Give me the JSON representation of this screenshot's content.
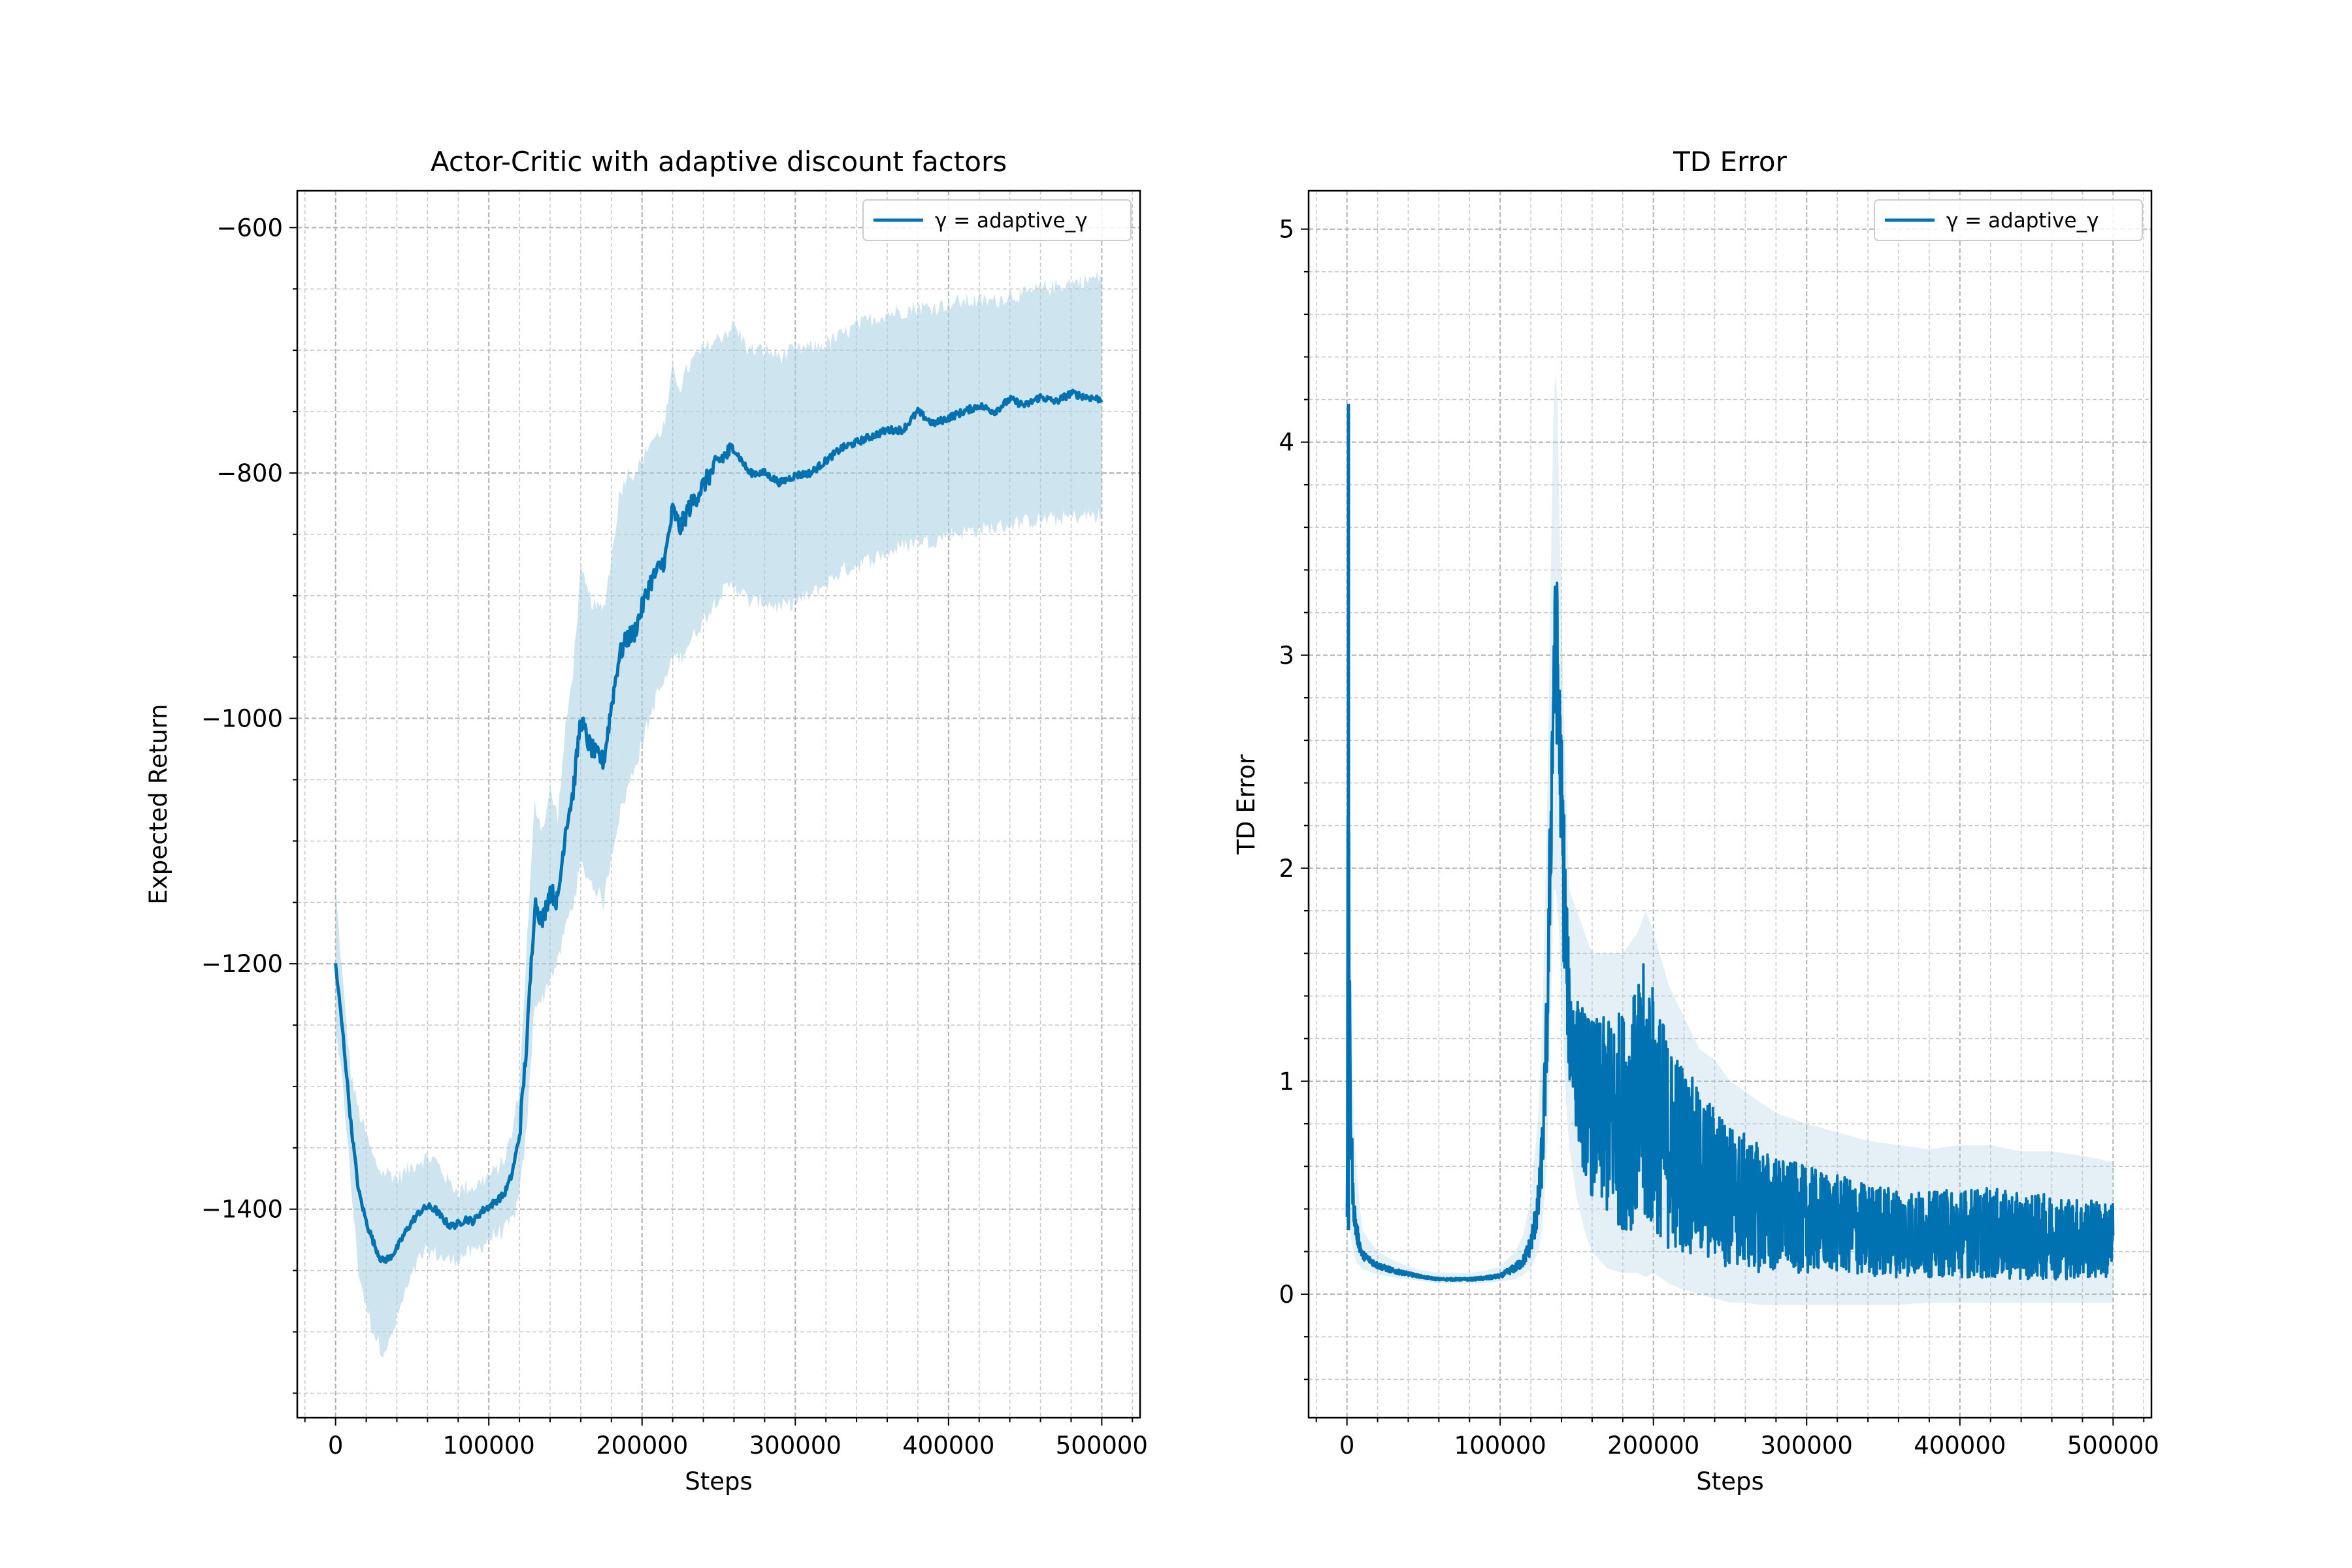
{
  "colors": {
    "line": "#0072b2",
    "band": "#a6cde2",
    "grid": "#b0b0b0",
    "background": "#ffffff"
  },
  "chart_data": [
    {
      "type": "line",
      "title": "Actor-Critic with adaptive discount factors",
      "xlabel": "Steps",
      "ylabel": "Expected Return",
      "xlim": [
        -25000,
        525000
      ],
      "ylim": [
        -1570,
        -570
      ],
      "xticks": [
        0,
        100000,
        200000,
        300000,
        400000,
        500000
      ],
      "xtick_labels": [
        "0",
        "100000",
        "200000",
        "300000",
        "400000",
        "500000"
      ],
      "yticks": [
        -1400,
        -1200,
        -1000,
        -800,
        -600
      ],
      "ytick_labels": [
        "−1400",
        "−1200",
        "−1000",
        "−800",
        "−600"
      ],
      "grid": true,
      "legend_position": "top-right",
      "series": [
        {
          "name": "γ = adaptive_γ",
          "x": [
            0,
            5000,
            10000,
            15000,
            20000,
            25000,
            30000,
            35000,
            40000,
            45000,
            50000,
            55000,
            60000,
            65000,
            70000,
            75000,
            80000,
            85000,
            90000,
            95000,
            100000,
            105000,
            110000,
            115000,
            120000,
            125000,
            130000,
            135000,
            140000,
            145000,
            150000,
            155000,
            160000,
            165000,
            170000,
            175000,
            180000,
            185000,
            190000,
            195000,
            200000,
            205000,
            210000,
            215000,
            220000,
            225000,
            230000,
            235000,
            240000,
            250000,
            260000,
            270000,
            280000,
            290000,
            300000,
            310000,
            320000,
            330000,
            340000,
            350000,
            360000,
            370000,
            380000,
            390000,
            400000,
            410000,
            420000,
            430000,
            440000,
            450000,
            460000,
            470000,
            480000,
            490000,
            500000
          ],
          "y": [
            -1200,
            -1260,
            -1330,
            -1385,
            -1410,
            -1428,
            -1442,
            -1440,
            -1432,
            -1420,
            -1410,
            -1402,
            -1398,
            -1400,
            -1408,
            -1414,
            -1412,
            -1408,
            -1410,
            -1402,
            -1398,
            -1393,
            -1388,
            -1372,
            -1340,
            -1260,
            -1150,
            -1165,
            -1140,
            -1150,
            -1090,
            -1060,
            -1000,
            -1020,
            -1030,
            -1035,
            -990,
            -950,
            -935,
            -930,
            -910,
            -890,
            -880,
            -870,
            -830,
            -845,
            -830,
            -820,
            -810,
            -790,
            -780,
            -800,
            -800,
            -808,
            -802,
            -800,
            -790,
            -780,
            -775,
            -770,
            -765,
            -765,
            -750,
            -760,
            -755,
            -750,
            -745,
            -750,
            -740,
            -745,
            -738,
            -742,
            -735,
            -738,
            -740
          ],
          "lower": [
            -1260,
            -1300,
            -1380,
            -1450,
            -1480,
            -1500,
            -1515,
            -1510,
            -1490,
            -1470,
            -1455,
            -1440,
            -1435,
            -1436,
            -1440,
            -1442,
            -1440,
            -1436,
            -1436,
            -1430,
            -1425,
            -1420,
            -1418,
            -1410,
            -1390,
            -1330,
            -1230,
            -1230,
            -1210,
            -1200,
            -1170,
            -1150,
            -1120,
            -1130,
            -1140,
            -1150,
            -1110,
            -1080,
            -1060,
            -1040,
            -1020,
            -1000,
            -980,
            -970,
            -950,
            -950,
            -940,
            -930,
            -920,
            -900,
            -890,
            -905,
            -905,
            -910,
            -905,
            -900,
            -890,
            -880,
            -875,
            -870,
            -865,
            -860,
            -855,
            -855,
            -850,
            -848,
            -846,
            -845,
            -842,
            -840,
            -838,
            -838,
            -836,
            -835,
            -835
          ],
          "upper": [
            -1140,
            -1220,
            -1290,
            -1320,
            -1340,
            -1360,
            -1370,
            -1370,
            -1375,
            -1370,
            -1365,
            -1360,
            -1358,
            -1360,
            -1370,
            -1380,
            -1385,
            -1382,
            -1382,
            -1378,
            -1373,
            -1368,
            -1360,
            -1340,
            -1300,
            -1180,
            -1070,
            -1090,
            -1060,
            -1080,
            -1010,
            -960,
            -880,
            -900,
            -910,
            -910,
            -870,
            -820,
            -800,
            -800,
            -790,
            -775,
            -770,
            -760,
            -715,
            -730,
            -715,
            -705,
            -700,
            -690,
            -680,
            -700,
            -700,
            -705,
            -700,
            -698,
            -695,
            -688,
            -680,
            -675,
            -670,
            -668,
            -665,
            -665,
            -662,
            -660,
            -660,
            -660,
            -655,
            -655,
            -650,
            -648,
            -645,
            -643,
            -640
          ]
        }
      ]
    },
    {
      "type": "line",
      "title": "TD Error",
      "xlabel": "Steps",
      "ylabel": "TD Error",
      "xlim": [
        -25000,
        525000
      ],
      "ylim": [
        -0.58,
        5.18
      ],
      "xticks": [
        0,
        100000,
        200000,
        300000,
        400000,
        500000
      ],
      "xtick_labels": [
        "0",
        "100000",
        "200000",
        "300000",
        "400000",
        "500000"
      ],
      "yticks": [
        0,
        1,
        2,
        3,
        4,
        5
      ],
      "ytick_labels": [
        "0",
        "1",
        "2",
        "3",
        "4",
        "5"
      ],
      "grid": true,
      "legend_position": "top-right",
      "series": [
        {
          "name": "γ = adaptive_γ",
          "x": [
            0,
            1000,
            2000,
            4000,
            6000,
            10000,
            20000,
            30000,
            40000,
            50000,
            60000,
            70000,
            80000,
            90000,
            100000,
            110000,
            115000,
            120000,
            125000,
            128000,
            131000,
            133000,
            135000,
            137000,
            139000,
            141000,
            143000,
            145000,
            150000,
            155000,
            160000,
            170000,
            180000,
            190000,
            195000,
            200000,
            210000,
            220000,
            230000,
            240000,
            250000,
            260000,
            270000,
            280000,
            300000,
            320000,
            340000,
            360000,
            380000,
            400000,
            420000,
            440000,
            460000,
            480000,
            500000
          ],
          "y_low": [
            0.2,
            1.0,
            0.5,
            0.3,
            0.2,
            0.15,
            0.11,
            0.09,
            0.08,
            0.07,
            0.06,
            0.06,
            0.06,
            0.06,
            0.07,
            0.09,
            0.11,
            0.15,
            0.25,
            0.45,
            0.9,
            1.6,
            2.2,
            2.3,
            2.0,
            1.6,
            1.3,
            1.0,
            0.75,
            0.55,
            0.45,
            0.35,
            0.3,
            0.3,
            0.25,
            0.3,
            0.2,
            0.2,
            0.15,
            0.15,
            0.12,
            0.12,
            0.1,
            0.1,
            0.1,
            0.1,
            0.08,
            0.08,
            0.08,
            0.08,
            0.07,
            0.07,
            0.07,
            0.07,
            0.07
          ],
          "y_high": [
            0.6,
            4.18,
            1.5,
            0.6,
            0.4,
            0.22,
            0.16,
            0.13,
            0.11,
            0.09,
            0.08,
            0.08,
            0.08,
            0.09,
            0.1,
            0.16,
            0.2,
            0.32,
            0.6,
            1.0,
            1.8,
            2.8,
            3.6,
            3.68,
            3.1,
            2.5,
            2.0,
            1.55,
            1.4,
            1.35,
            1.3,
            1.3,
            1.35,
            1.45,
            1.6,
            1.45,
            1.2,
            1.1,
            0.95,
            0.9,
            0.8,
            0.75,
            0.7,
            0.65,
            0.6,
            0.56,
            0.52,
            0.5,
            0.48,
            0.5,
            0.5,
            0.47,
            0.47,
            0.45,
            0.43
          ],
          "band_lower": [
            0.1,
            0.5,
            0.3,
            0.2,
            0.15,
            0.12,
            0.09,
            0.08,
            0.07,
            0.06,
            0.05,
            0.05,
            0.05,
            0.05,
            0.06,
            0.07,
            0.09,
            0.12,
            0.2,
            0.35,
            0.7,
            1.3,
            1.9,
            1.9,
            1.6,
            1.2,
            0.9,
            0.7,
            0.45,
            0.3,
            0.2,
            0.12,
            0.1,
            0.1,
            0.08,
            0.1,
            0.05,
            0.02,
            0.0,
            -0.02,
            -0.04,
            -0.04,
            -0.05,
            -0.05,
            -0.05,
            -0.05,
            -0.05,
            -0.05,
            -0.04,
            -0.04,
            -0.04,
            -0.04,
            -0.04,
            -0.04,
            -0.04
          ],
          "band_upper": [
            0.8,
            4.18,
            2.0,
            0.9,
            0.6,
            0.3,
            0.2,
            0.16,
            0.13,
            0.11,
            0.1,
            0.1,
            0.1,
            0.11,
            0.13,
            0.2,
            0.28,
            0.45,
            0.85,
            1.4,
            2.4,
            3.4,
            4.2,
            4.4,
            3.5,
            2.9,
            2.4,
            1.9,
            1.8,
            1.7,
            1.6,
            1.6,
            1.6,
            1.7,
            1.8,
            1.7,
            1.45,
            1.3,
            1.15,
            1.1,
            1.0,
            0.95,
            0.9,
            0.85,
            0.8,
            0.76,
            0.72,
            0.7,
            0.68,
            0.7,
            0.7,
            0.67,
            0.67,
            0.65,
            0.62
          ]
        }
      ]
    }
  ]
}
